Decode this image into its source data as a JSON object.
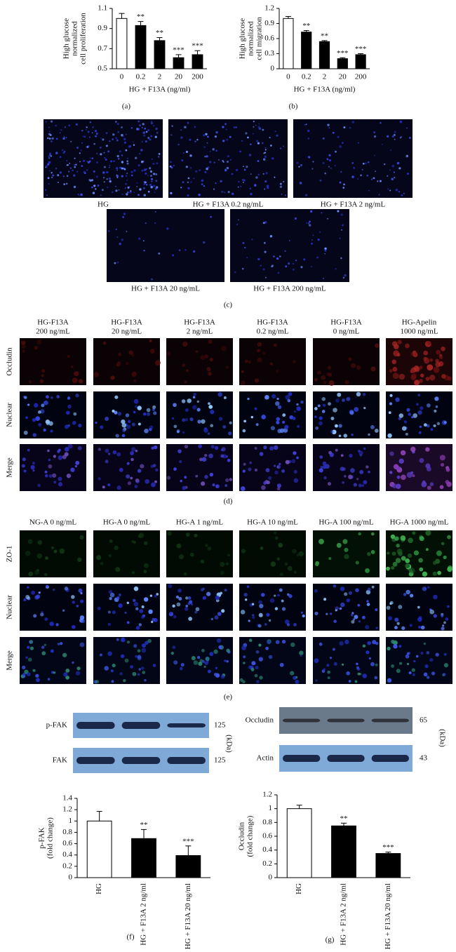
{
  "chart_data": [
    {
      "type": "bar",
      "ylabel": [
        "High glucose",
        "normalized",
        "cell proliferation"
      ],
      "xlabel": "HG + F13A (ng/ml)",
      "categories": [
        "0",
        "0.2",
        "2",
        "20",
        "200"
      ],
      "values": [
        1.0,
        0.93,
        0.78,
        0.61,
        0.64
      ],
      "errors": [
        0.05,
        0.04,
        0.03,
        0.03,
        0.04
      ],
      "annotations": [
        null,
        "**",
        "**",
        "***",
        "***"
      ],
      "colors": [
        "#ffffff",
        "#000000",
        "#000000",
        "#000000",
        "#000000"
      ],
      "ylim": [
        0.5,
        1.1
      ],
      "yticks": [
        0.5,
        0.7,
        0.9,
        1.1
      ],
      "caption": "(a)"
    },
    {
      "type": "bar",
      "ylabel": [
        "High glucose",
        "normalized",
        "cell migration"
      ],
      "xlabel": "HG + F13A (ng/ml)",
      "categories": [
        "0",
        "0.2",
        "2",
        "20",
        "200"
      ],
      "values": [
        1.0,
        0.73,
        0.54,
        0.2,
        0.28
      ],
      "errors": [
        0.04,
        0.03,
        0.02,
        0.02,
        0.02
      ],
      "annotations": [
        null,
        "**",
        "**",
        "***",
        "***"
      ],
      "colors": [
        "#ffffff",
        "#000000",
        "#000000",
        "#000000",
        "#000000"
      ],
      "ylim": [
        0,
        1.2
      ],
      "yticks": [
        0,
        0.3,
        0.6,
        0.9,
        1.2
      ],
      "caption": "(b)"
    },
    {
      "type": "bar",
      "ylabel": [
        "p-FAK",
        "(fold change)"
      ],
      "categories": [
        "HG",
        "HG + F13A 2 ng/ml",
        "HG + F13A 20 ng/ml"
      ],
      "values": [
        1.0,
        0.69,
        0.39
      ],
      "errors": [
        0.17,
        0.16,
        0.17
      ],
      "annotations": [
        null,
        "**",
        "***"
      ],
      "colors": [
        "#ffffff",
        "#000000",
        "#000000"
      ],
      "ylim": [
        0,
        1.4
      ],
      "yticks": [
        0,
        0.2,
        0.4,
        0.6,
        0.8,
        1,
        1.2,
        1.4
      ],
      "caption": "(f)"
    },
    {
      "type": "bar",
      "ylabel": [
        "Occludin",
        "(fold change)"
      ],
      "categories": [
        "HG",
        "HG + F13A 2 ng/ml",
        "HG + F13A 20 ng/ml"
      ],
      "values": [
        1.0,
        0.75,
        0.35
      ],
      "errors": [
        0.05,
        0.04,
        0.02
      ],
      "annotations": [
        null,
        "**",
        "***"
      ],
      "colors": [
        "#ffffff",
        "#000000",
        "#000000"
      ],
      "ylim": [
        0,
        1.2
      ],
      "yticks": [
        0,
        0.2,
        0.4,
        0.6,
        0.8,
        1,
        1.2
      ],
      "caption": "(g)"
    }
  ],
  "panel_c": {
    "images": [
      "HG",
      "HG + F13A 0.2 ng/mL",
      "HG + F13A 2 ng/mL",
      "HG + F13A 20 ng/mL",
      "HG + F13A 200 ng/mL"
    ],
    "caption": "(c)"
  },
  "panel_d": {
    "columns": [
      [
        "HG-F13A",
        "200 ng/mL"
      ],
      [
        "HG-F13A",
        "20 ng/mL"
      ],
      [
        "HG-F13A",
        "2 ng/mL"
      ],
      [
        "HG-F13A",
        "0.2 ng/mL"
      ],
      [
        "HG-F13A",
        "0 ng/mL"
      ],
      [
        "HG-Apelin",
        "1000 ng/mL"
      ]
    ],
    "rows": [
      "Occludin",
      "Nuclear",
      "Merge"
    ],
    "caption": "(d)"
  },
  "panel_e": {
    "columns": [
      "NG-A 0 ng/mL",
      "HG-A 0 ng/mL",
      "HG-A 1 ng/mL",
      "HG-A 10 ng/mL",
      "HG-A 100 ng/mL",
      "HG-A 1000 ng/mL"
    ],
    "rows": [
      "ZO-1",
      "Nuclear",
      "Merge"
    ],
    "caption": "(e)"
  },
  "blots_f": {
    "rows": [
      {
        "label": "p-FAK",
        "size": 125
      },
      {
        "label": "FAK",
        "size": 125
      }
    ],
    "unit": "(kDa)"
  },
  "blots_g": {
    "rows": [
      {
        "label": "Occludin",
        "size": 65
      },
      {
        "label": "Actin",
        "size": 43
      }
    ],
    "unit": "(kDa)"
  }
}
